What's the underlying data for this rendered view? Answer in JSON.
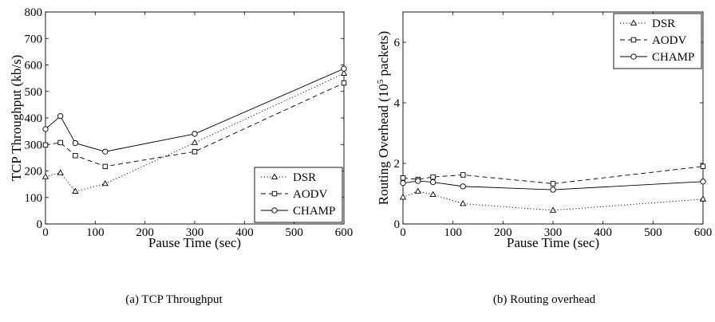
{
  "captions": [
    "(a) TCP Throughput",
    "(b) Routing overhead"
  ],
  "chart_data": [
    {
      "type": "line",
      "xlabel": "Pause Time (sec)",
      "ylabel": "TCP Throughput (kb/s)",
      "xlim": [
        0,
        600
      ],
      "ylim": [
        0,
        800
      ],
      "xticks": [
        0,
        100,
        200,
        300,
        400,
        500,
        600
      ],
      "yticks": [
        0,
        100,
        200,
        300,
        400,
        500,
        600,
        700,
        800
      ],
      "legend": "bottom-right",
      "grid": false,
      "series": [
        {
          "name": "DSR",
          "style": "dotted",
          "marker": "triangle",
          "x": [
            0,
            30,
            60,
            120,
            300,
            600
          ],
          "y": [
            178,
            193,
            123,
            152,
            307,
            568
          ]
        },
        {
          "name": "AODV",
          "style": "dashed",
          "marker": "square",
          "x": [
            0,
            30,
            60,
            120,
            300,
            600
          ],
          "y": [
            298,
            307,
            258,
            217,
            273,
            532
          ]
        },
        {
          "name": "CHAMP",
          "style": "solid",
          "marker": "circle",
          "x": [
            0,
            30,
            60,
            120,
            300,
            600
          ],
          "y": [
            358,
            407,
            305,
            273,
            340,
            586
          ]
        }
      ]
    },
    {
      "type": "line",
      "xlabel": "Pause Time (sec)",
      "ylabel": "Routing Overhead (10",
      "ylabel_sup": "5",
      "ylabel_tail": " packets)",
      "xlim": [
        0,
        600
      ],
      "ylim": [
        0,
        7
      ],
      "xticks": [
        0,
        100,
        200,
        300,
        400,
        500,
        600
      ],
      "yticks": [
        0,
        2,
        4,
        6
      ],
      "legend": "top-right",
      "grid": false,
      "series": [
        {
          "name": "DSR",
          "style": "dotted",
          "marker": "triangle",
          "x": [
            0,
            30,
            60,
            120,
            300,
            600
          ],
          "y": [
            0.88,
            1.08,
            0.97,
            0.67,
            0.45,
            0.82
          ]
        },
        {
          "name": "AODV",
          "style": "dashed",
          "marker": "square",
          "x": [
            0,
            30,
            60,
            120,
            300,
            600
          ],
          "y": [
            1.52,
            1.47,
            1.55,
            1.62,
            1.33,
            1.9
          ]
        },
        {
          "name": "CHAMP",
          "style": "solid",
          "marker": "circle",
          "x": [
            0,
            30,
            60,
            120,
            300,
            600
          ],
          "y": [
            1.35,
            1.42,
            1.38,
            1.24,
            1.13,
            1.4
          ]
        }
      ]
    }
  ]
}
